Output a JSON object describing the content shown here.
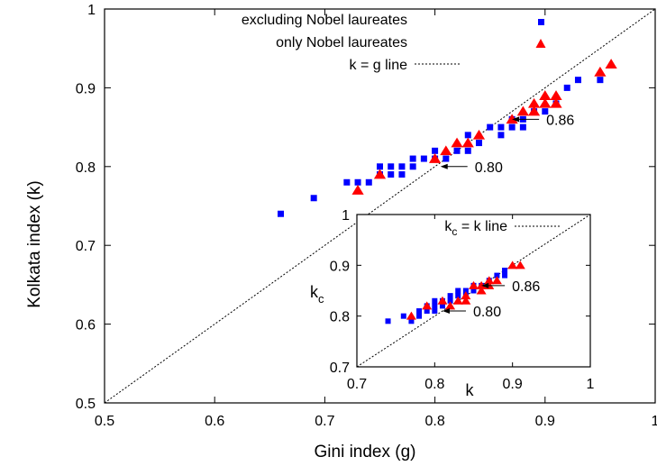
{
  "chart_data": [
    {
      "type": "scatter",
      "xlabel": "Gini index (g)",
      "ylabel": "Kolkata index (k)",
      "xlim": [
        0.5,
        1.0
      ],
      "ylim": [
        0.5,
        1.0
      ],
      "xticks": [
        "0.5",
        "0.6",
        "0.7",
        "0.8",
        "0.9",
        "1"
      ],
      "yticks": [
        "0.5",
        "0.6",
        "0.7",
        "0.8",
        "0.9",
        "1"
      ],
      "legend_position": "top-right",
      "series": [
        {
          "name": "excluding Nobel laureates",
          "marker": "square",
          "color": "#0000ff",
          "points": [
            [
              0.66,
              0.74
            ],
            [
              0.69,
              0.76
            ],
            [
              0.72,
              0.78
            ],
            [
              0.73,
              0.78
            ],
            [
              0.74,
              0.78
            ],
            [
              0.75,
              0.79
            ],
            [
              0.75,
              0.8
            ],
            [
              0.76,
              0.79
            ],
            [
              0.76,
              0.8
            ],
            [
              0.77,
              0.79
            ],
            [
              0.77,
              0.8
            ],
            [
              0.78,
              0.8
            ],
            [
              0.78,
              0.81
            ],
            [
              0.79,
              0.81
            ],
            [
              0.8,
              0.81
            ],
            [
              0.8,
              0.82
            ],
            [
              0.81,
              0.81
            ],
            [
              0.82,
              0.82
            ],
            [
              0.83,
              0.82
            ],
            [
              0.83,
              0.84
            ],
            [
              0.84,
              0.83
            ],
            [
              0.85,
              0.85
            ],
            [
              0.86,
              0.84
            ],
            [
              0.86,
              0.85
            ],
            [
              0.87,
              0.85
            ],
            [
              0.87,
              0.86
            ],
            [
              0.88,
              0.85
            ],
            [
              0.88,
              0.86
            ],
            [
              0.89,
              0.87
            ],
            [
              0.9,
              0.87
            ],
            [
              0.91,
              0.88
            ],
            [
              0.92,
              0.9
            ],
            [
              0.93,
              0.91
            ],
            [
              0.95,
              0.91
            ]
          ]
        },
        {
          "name": "only Nobel laureates",
          "marker": "triangle",
          "color": "#ff0000",
          "points": [
            [
              0.73,
              0.77
            ],
            [
              0.75,
              0.79
            ],
            [
              0.8,
              0.81
            ],
            [
              0.81,
              0.82
            ],
            [
              0.82,
              0.83
            ],
            [
              0.83,
              0.83
            ],
            [
              0.84,
              0.84
            ],
            [
              0.87,
              0.86
            ],
            [
              0.88,
              0.87
            ],
            [
              0.89,
              0.87
            ],
            [
              0.89,
              0.88
            ],
            [
              0.9,
              0.88
            ],
            [
              0.9,
              0.89
            ],
            [
              0.91,
              0.88
            ],
            [
              0.91,
              0.89
            ],
            [
              0.95,
              0.92
            ],
            [
              0.96,
              0.93
            ]
          ]
        },
        {
          "name": "k = g line",
          "marker": "dotted-line",
          "color": "#000000",
          "points": [
            [
              0.5,
              0.5
            ],
            [
              1.0,
              1.0
            ]
          ]
        }
      ],
      "annotations": [
        {
          "text": "0.86",
          "x": 0.87,
          "y": 0.86
        },
        {
          "text": "0.80",
          "x": 0.805,
          "y": 0.8
        }
      ]
    },
    {
      "type": "scatter",
      "role": "inset",
      "xlabel": "k",
      "ylabel": "k",
      "ylabel_sub": "c",
      "xlim": [
        0.7,
        1.0
      ],
      "ylim": [
        0.7,
        1.0
      ],
      "xticks": [
        "0.7",
        "0.8",
        "0.9",
        "1"
      ],
      "yticks": [
        "0.7",
        "0.8",
        "0.9",
        "1"
      ],
      "legend_position": "top-right",
      "series": [
        {
          "name": "",
          "marker": "square",
          "color": "#0000ff",
          "points": [
            [
              0.74,
              0.79
            ],
            [
              0.76,
              0.8
            ],
            [
              0.77,
              0.79
            ],
            [
              0.78,
              0.8
            ],
            [
              0.78,
              0.81
            ],
            [
              0.79,
              0.81
            ],
            [
              0.79,
              0.82
            ],
            [
              0.8,
              0.81
            ],
            [
              0.8,
              0.82
            ],
            [
              0.8,
              0.83
            ],
            [
              0.81,
              0.82
            ],
            [
              0.81,
              0.83
            ],
            [
              0.82,
              0.83
            ],
            [
              0.82,
              0.84
            ],
            [
              0.83,
              0.84
            ],
            [
              0.83,
              0.85
            ],
            [
              0.84,
              0.84
            ],
            [
              0.84,
              0.85
            ],
            [
              0.85,
              0.85
            ],
            [
              0.85,
              0.86
            ],
            [
              0.86,
              0.86
            ],
            [
              0.87,
              0.87
            ],
            [
              0.88,
              0.88
            ],
            [
              0.89,
              0.88
            ],
            [
              0.89,
              0.89
            ]
          ]
        },
        {
          "name": "",
          "marker": "triangle",
          "color": "#ff0000",
          "points": [
            [
              0.77,
              0.8
            ],
            [
              0.79,
              0.82
            ],
            [
              0.81,
              0.83
            ],
            [
              0.82,
              0.82
            ],
            [
              0.83,
              0.83
            ],
            [
              0.84,
              0.83
            ],
            [
              0.84,
              0.84
            ],
            [
              0.85,
              0.86
            ],
            [
              0.86,
              0.85
            ],
            [
              0.86,
              0.86
            ],
            [
              0.87,
              0.86
            ],
            [
              0.87,
              0.87
            ],
            [
              0.88,
              0.87
            ],
            [
              0.9,
              0.9
            ],
            [
              0.91,
              0.9
            ]
          ]
        },
        {
          "name": "k",
          "name_sub": "c",
          "name_suffix": " = k line",
          "marker": "dotted-line",
          "color": "#000000",
          "points": [
            [
              0.7,
              0.7
            ],
            [
              1.0,
              1.0
            ]
          ]
        }
      ],
      "annotations": [
        {
          "text": "0.86",
          "x": 0.86,
          "y": 0.86
        },
        {
          "text": "0.80",
          "x": 0.81,
          "y": 0.81
        }
      ]
    }
  ]
}
